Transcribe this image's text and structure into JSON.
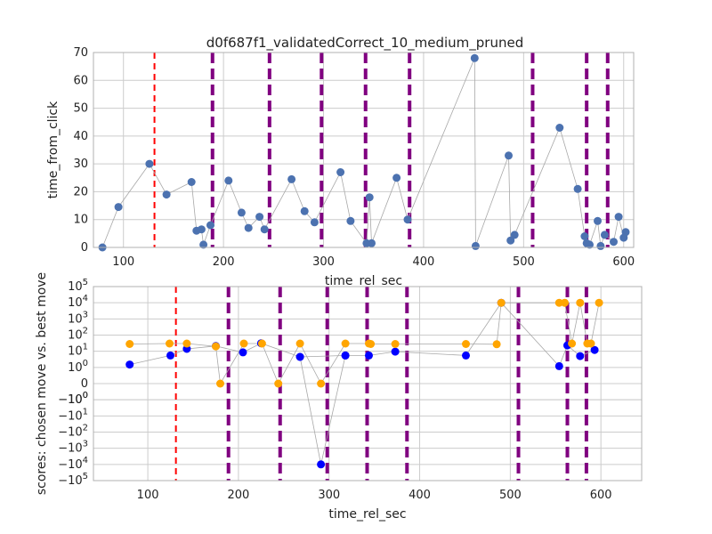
{
  "figure": {
    "title": "d0f687f1_validatedCorrect_10_medium_pruned"
  },
  "chart_data": [
    {
      "type": "scatter",
      "xlabel": "time_rel_sec",
      "ylabel": "time_from_click",
      "xlim": [
        70,
        610
      ],
      "ylim": [
        0,
        70
      ],
      "xticks": [
        100,
        200,
        300,
        400,
        500,
        600
      ],
      "yticks": [
        0,
        10,
        20,
        30,
        40,
        50,
        60,
        70
      ],
      "grid": true,
      "series": [
        {
          "marker": "circle",
          "color": "#4c72b0",
          "line_color": "#a8a8a8",
          "connected": true,
          "x": [
            79,
            95,
            126,
            143,
            168,
            173,
            178,
            180,
            187,
            205,
            218,
            225,
            236,
            241,
            268,
            281,
            291,
            317,
            327,
            343,
            346,
            348,
            373,
            384,
            451,
            452,
            485,
            487,
            491,
            536,
            554,
            561,
            563,
            566,
            574,
            577,
            581,
            590,
            595,
            600
          ],
          "y": [
            0,
            14.5,
            30,
            19,
            23.5,
            6,
            6.5,
            1,
            8,
            24,
            12.5,
            7,
            11,
            6.5,
            24.5,
            13,
            9,
            27,
            9.5,
            1.5,
            18,
            1.5,
            25,
            10,
            68,
            0.5,
            33,
            2.5,
            4.5,
            43,
            21,
            4,
            1.5,
            1,
            9.5,
            0.5,
            4.5,
            2,
            11,
            3.5
          ]
        },
        {
          "marker": "circle",
          "color": "#4c72b0",
          "connected": false,
          "x": [
            602
          ],
          "y": [
            5.5
          ]
        }
      ],
      "vlines": [
        {
          "x": 131,
          "color": "#ff0000",
          "style": "dashed"
        },
        {
          "x": 189,
          "color": "#800080",
          "style": "dashed"
        },
        {
          "x": 246,
          "color": "#800080",
          "style": "dashed"
        },
        {
          "x": 298,
          "color": "#800080",
          "style": "dashed"
        },
        {
          "x": 342,
          "color": "#800080",
          "style": "dashed"
        },
        {
          "x": 386,
          "color": "#800080",
          "style": "dashed"
        },
        {
          "x": 509,
          "color": "#800080",
          "style": "dashed"
        },
        {
          "x": 563,
          "color": "#800080",
          "style": "dashed"
        },
        {
          "x": 584,
          "color": "#800080",
          "style": "dashed"
        }
      ]
    },
    {
      "type": "scatter",
      "xlabel": "time_rel_sec",
      "ylabel": "scores: chosen move vs. best move",
      "yscale": "symlog",
      "xlim": [
        40,
        645
      ],
      "ylim": [
        -100000,
        100000
      ],
      "xticks": [
        100,
        200,
        300,
        400,
        500,
        600
      ],
      "yticks": [
        "10^5",
        "10^4",
        "10^3",
        "10^2",
        "10^1",
        "10^0",
        "-10^0",
        "0",
        "-10^0",
        "-10^1",
        "-10^2",
        "-10^3",
        "-10^4",
        "-10^5"
      ],
      "grid": true,
      "series": [
        {
          "marker": "circle",
          "color": "#0000ff",
          "line_color": "#a8a8a8",
          "connected": true,
          "x": [
            80,
            125,
            143,
            175,
            205,
            225,
            268,
            318,
            344,
            373,
            451,
            490,
            554,
            563,
            577,
            593
          ],
          "y": [
            1.5,
            5.5,
            14,
            21,
            8.5,
            31,
            4.5,
            5.5,
            5.5,
            9.5,
            5.5,
            10000,
            1.2,
            23,
            5,
            12
          ]
        },
        {
          "marker": "circle",
          "color": "#0000ff",
          "line_color": "#a8a8a8",
          "connected": true,
          "x": [
            268,
            291,
            318
          ],
          "y": [
            4.5,
            -10000,
            5.5
          ]
        },
        {
          "marker": "circle",
          "color": "#ffa500",
          "line_color": "#a8a8a8",
          "connected": true,
          "x": [
            80,
            124,
            143,
            175,
            180,
            206,
            226,
            244,
            268,
            291,
            318,
            344,
            346,
            373,
            451,
            485,
            490,
            554,
            560,
            568,
            577,
            585,
            589,
            598
          ],
          "y": [
            28,
            30,
            30,
            20,
            0,
            30,
            30,
            0,
            30,
            0,
            30,
            30,
            28,
            28,
            28,
            27,
            10000,
            10000,
            10000,
            30,
            10000,
            30,
            30,
            10000
          ]
        }
      ],
      "vlines": [
        {
          "x": 131,
          "color": "#ff0000",
          "style": "dashed"
        },
        {
          "x": 189,
          "color": "#800080",
          "style": "dashed"
        },
        {
          "x": 246,
          "color": "#800080",
          "style": "dashed"
        },
        {
          "x": 298,
          "color": "#800080",
          "style": "dashed"
        },
        {
          "x": 342,
          "color": "#800080",
          "style": "dashed"
        },
        {
          "x": 386,
          "color": "#800080",
          "style": "dashed"
        },
        {
          "x": 509,
          "color": "#800080",
          "style": "dashed"
        },
        {
          "x": 563,
          "color": "#800080",
          "style": "dashed"
        },
        {
          "x": 584,
          "color": "#800080",
          "style": "dashed"
        }
      ]
    }
  ]
}
